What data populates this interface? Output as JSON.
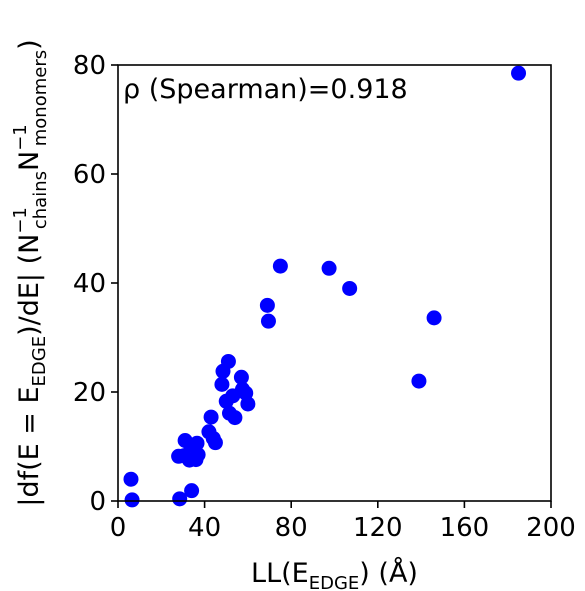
{
  "chart_data": {
    "type": "scatter",
    "xlabel": {
      "main": "LL(E",
      "sub": "EDGE",
      "tail": ") (Å)"
    },
    "ylabel": {
      "p1": "|df(E = E",
      "p1_sub": "EDGE",
      "p2": ")/dE| (N",
      "p2_sup": "−1",
      "p2_sub": "chains",
      "p3": "N",
      "p3_sup": "−1",
      "p3_sub": "monomers",
      "p4": ")"
    },
    "annotation": "ρ (Spearman)=0.918",
    "xlim": [
      0,
      200
    ],
    "ylim": [
      0,
      80
    ],
    "xticks": [
      0,
      40,
      80,
      120,
      160,
      200
    ],
    "yticks": [
      0,
      20,
      40,
      60,
      80
    ],
    "grid": false,
    "marker_color": "#0000ff",
    "points": [
      [
        6,
        4
      ],
      [
        6.5,
        0.2
      ],
      [
        28,
        8.2
      ],
      [
        28.5,
        0.4
      ],
      [
        30.5,
        8.3
      ],
      [
        31,
        11.1
      ],
      [
        33,
        7.5
      ],
      [
        33.5,
        10.2
      ],
      [
        34,
        1.9
      ],
      [
        36,
        7.6
      ],
      [
        36.5,
        10.6
      ],
      [
        37,
        8.5
      ],
      [
        42,
        12.7
      ],
      [
        43,
        15.4
      ],
      [
        44,
        11.5
      ],
      [
        45,
        10.7
      ],
      [
        48,
        21.4
      ],
      [
        48.5,
        23.8
      ],
      [
        50,
        18.3
      ],
      [
        51,
        25.6
      ],
      [
        51.5,
        16.1
      ],
      [
        53,
        19.3
      ],
      [
        54,
        15.3
      ],
      [
        57,
        22.7
      ],
      [
        57.5,
        20.5
      ],
      [
        59,
        19.8
      ],
      [
        60,
        17.8
      ],
      [
        69,
        35.9
      ],
      [
        69.5,
        33
      ],
      [
        75,
        43.1
      ],
      [
        97.5,
        42.7
      ],
      [
        107,
        39
      ],
      [
        139,
        22
      ],
      [
        146,
        33.6
      ],
      [
        185,
        78.5
      ]
    ]
  }
}
